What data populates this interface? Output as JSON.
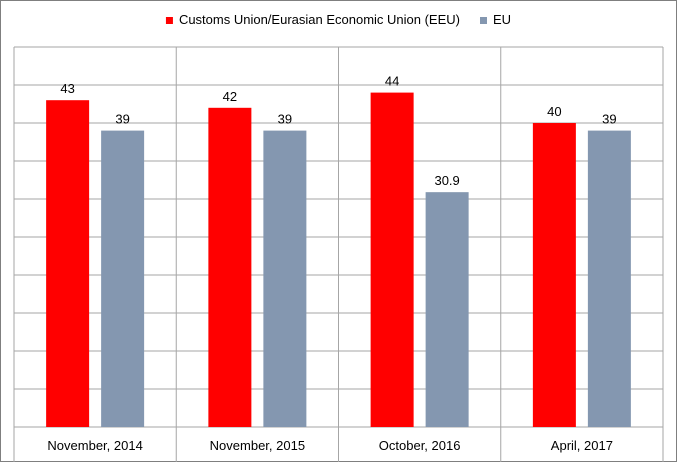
{
  "chart_data": {
    "type": "bar",
    "categories": [
      "November, 2014",
      "November, 2015",
      "October, 2016",
      "April, 2017"
    ],
    "series": [
      {
        "name": "Customs Union/Eurasian Economic Union (EEU)",
        "values": [
          43,
          42,
          44,
          40
        ],
        "labels": [
          "43",
          "42",
          "44",
          "40"
        ],
        "color": "#ff0000"
      },
      {
        "name": "EU",
        "values": [
          39,
          39,
          30.9,
          39
        ],
        "labels": [
          "39",
          "39",
          "30.9",
          "39"
        ],
        "color": "#8497b0"
      }
    ],
    "ylim": [
      0,
      50
    ],
    "grid": true,
    "legend_position": "top",
    "title": "",
    "xlabel": "",
    "ylabel": ""
  }
}
